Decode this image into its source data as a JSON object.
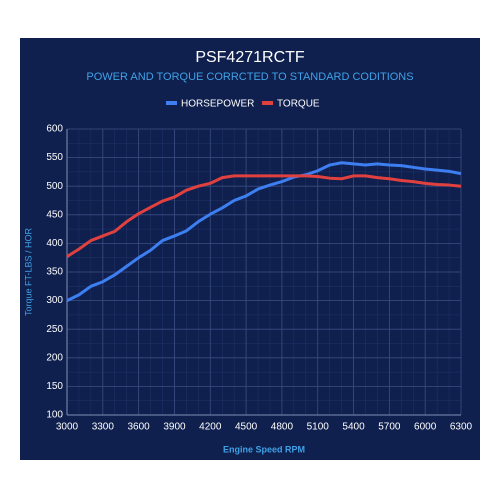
{
  "chart_data": {
    "type": "line",
    "title": "PSF4271RCTF",
    "subtitle": "POWER AND TORQUE CORRCTED TO STANDARD CODITIONS",
    "x_label": "Engine Speed RPM",
    "y_label": "Torque FT-LBS / HOR",
    "x": [
      3000,
      3100,
      3200,
      3300,
      3400,
      3500,
      3600,
      3700,
      3800,
      3900,
      4000,
      4100,
      4200,
      4300,
      4400,
      4500,
      4600,
      4700,
      4800,
      4900,
      5000,
      5100,
      5200,
      5300,
      5400,
      5500,
      5600,
      5700,
      5800,
      5900,
      6000,
      6100,
      6200,
      6300
    ],
    "series": [
      {
        "name": "HORSEPOWER",
        "color": "#3d7ff0",
        "values": [
          300,
          310,
          325,
          333,
          345,
          360,
          375,
          388,
          405,
          413,
          422,
          438,
          451,
          462,
          475,
          483,
          495,
          502,
          508,
          516,
          520,
          527,
          537,
          541,
          539,
          537,
          539,
          537,
          536,
          533,
          530,
          528,
          526,
          522
        ]
      },
      {
        "name": "TORQUE",
        "color": "#e0413f",
        "values": [
          377,
          390,
          405,
          413,
          421,
          438,
          452,
          463,
          474,
          481,
          493,
          500,
          505,
          515,
          518,
          518,
          518,
          518,
          518,
          518,
          518,
          517,
          514,
          513,
          518,
          518,
          515,
          513,
          510,
          508,
          505,
          503,
          502,
          500
        ]
      }
    ],
    "xlim": [
      3000,
      6300
    ],
    "xticks": [
      3000,
      3300,
      3600,
      3900,
      4200,
      4500,
      4800,
      5100,
      5400,
      5700,
      6000,
      6300
    ],
    "ylim": [
      100,
      600
    ],
    "yticks": [
      100,
      150,
      200,
      250,
      300,
      350,
      400,
      450,
      500,
      550,
      600
    ],
    "grid": true
  }
}
